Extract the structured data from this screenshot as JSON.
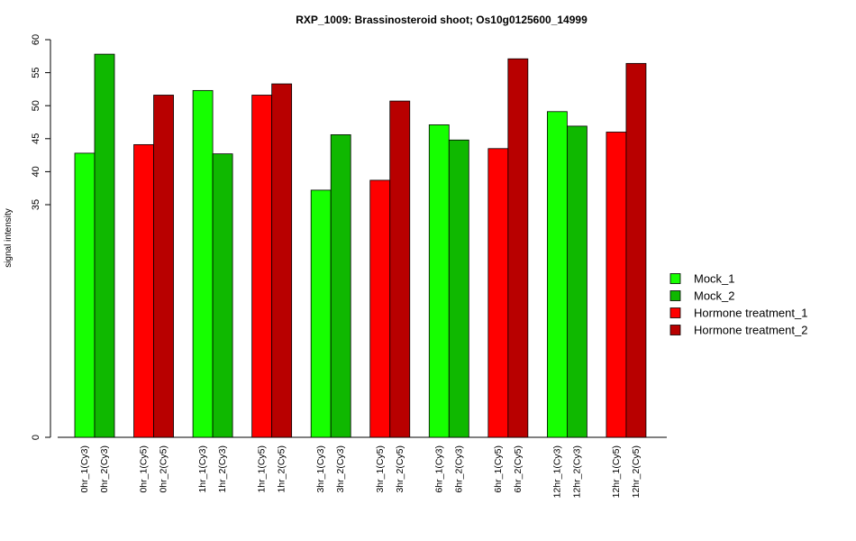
{
  "chart_data": {
    "type": "bar",
    "title": "RXP_1009: Brassinosteroid shoot; Os10g0125600_14999",
    "xlabel": "",
    "ylabel": "signal intensity",
    "y_ticks": [
      0,
      35,
      40,
      45,
      50,
      55,
      60
    ],
    "y_axis_break": "linear from 0 to 35, then 35 to 60",
    "legend_position": "right",
    "grid": false,
    "series": [
      {
        "name": "Mock_1",
        "color": "#16ff00"
      },
      {
        "name": "Mock_2",
        "color": "#0fb800"
      },
      {
        "name": "Hormone treatment_1",
        "color": "#ff0000"
      },
      {
        "name": "Hormone treatment_2",
        "color": "#b80000"
      }
    ],
    "bars": [
      {
        "label": "0hr_1(Cy3)",
        "value": 42.8,
        "series": 0
      },
      {
        "label": "0hr_2(Cy3)",
        "value": 57.8,
        "series": 1
      },
      {
        "label": "0hr_1(Cy5)",
        "value": 44.1,
        "series": 2
      },
      {
        "label": "0hr_2(Cy5)",
        "value": 51.6,
        "series": 3
      },
      {
        "label": "1hr_1(Cy3)",
        "value": 52.3,
        "series": 0
      },
      {
        "label": "1hr_2(Cy3)",
        "value": 42.7,
        "series": 1
      },
      {
        "label": "1hr_1(Cy5)",
        "value": 51.6,
        "series": 2
      },
      {
        "label": "1hr_2(Cy5)",
        "value": 53.3,
        "series": 3
      },
      {
        "label": "3hr_1(Cy3)",
        "value": 37.2,
        "series": 0
      },
      {
        "label": "3hr_2(Cy3)",
        "value": 45.6,
        "series": 1
      },
      {
        "label": "3hr_1(Cy5)",
        "value": 38.7,
        "series": 2
      },
      {
        "label": "3hr_2(Cy5)",
        "value": 50.7,
        "series": 3
      },
      {
        "label": "6hr_1(Cy3)",
        "value": 47.1,
        "series": 0
      },
      {
        "label": "6hr_2(Cy3)",
        "value": 44.8,
        "series": 1
      },
      {
        "label": "6hr_1(Cy5)",
        "value": 43.5,
        "series": 2
      },
      {
        "label": "6hr_2(Cy5)",
        "value": 57.1,
        "series": 3
      },
      {
        "label": "12hr_1(Cy3)",
        "value": 49.1,
        "series": 0
      },
      {
        "label": "12hr_2(Cy3)",
        "value": 46.9,
        "series": 1
      },
      {
        "label": "12hr_1(Cy5)",
        "value": 46.0,
        "series": 2
      },
      {
        "label": "12hr_2(Cy5)",
        "value": 56.4,
        "series": 3
      }
    ]
  }
}
